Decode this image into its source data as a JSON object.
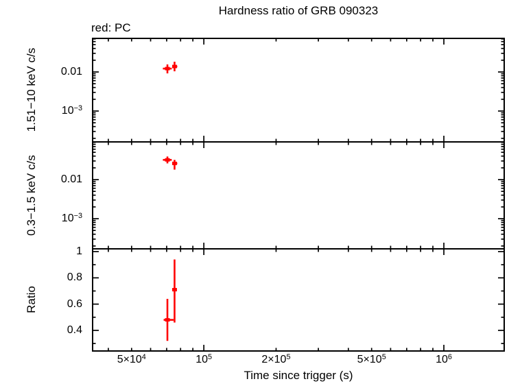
{
  "chart_data": {
    "type": "scatter",
    "title": "Hardness ratio of GRB 090323",
    "legend_note": "red: PC",
    "xlabel": "Time since trigger (s)",
    "x_scale": "log",
    "xlim": [
      34400,
      1784000
    ],
    "grid": false,
    "series_color": "#ff0000",
    "axis_color": "#000000",
    "x_ticks": [
      {
        "value": 50000,
        "base": "5×10",
        "exp": "4"
      },
      {
        "value": 100000,
        "base": "10",
        "exp": "5"
      },
      {
        "value": 200000,
        "base": "2×10",
        "exp": "5"
      },
      {
        "value": 500000,
        "base": "5×10",
        "exp": "5"
      },
      {
        "value": 1000000,
        "base": "10",
        "exp": "6"
      }
    ],
    "panels": [
      {
        "name": "hard-rate",
        "ylabel": "1.51−10 keV c/s",
        "y_scale": "log",
        "ylim": [
          0.000162,
          0.0724
        ],
        "y_ticks": [
          {
            "value": 0.01,
            "base": "0.01",
            "exp": ""
          },
          {
            "value": 0.001,
            "base": "10",
            "exp": "−3"
          }
        ],
        "points": [
          {
            "x": 70500,
            "x_lo": 67500,
            "x_hi": 73500,
            "y": 0.0122,
            "y_lo": 0.0092,
            "y_hi": 0.0156
          },
          {
            "x": 75500,
            "x_lo": 74000,
            "x_hi": 77500,
            "y": 0.0138,
            "y_lo": 0.0104,
            "y_hi": 0.0183
          }
        ]
      },
      {
        "name": "soft-rate",
        "ylabel": "0.3−1.5 keV c/s",
        "y_scale": "log",
        "ylim": [
          0.000169,
          0.0923
        ],
        "y_ticks": [
          {
            "value": 0.01,
            "base": "0.01",
            "exp": ""
          },
          {
            "value": 0.001,
            "base": "10",
            "exp": "−3"
          }
        ],
        "points": [
          {
            "x": 70500,
            "x_lo": 67500,
            "x_hi": 73500,
            "y": 0.032,
            "y_lo": 0.026,
            "y_hi": 0.039
          },
          {
            "x": 75500,
            "x_lo": 74000,
            "x_hi": 77500,
            "y": 0.026,
            "y_lo": 0.018,
            "y_hi": 0.032
          }
        ]
      },
      {
        "name": "ratio",
        "ylabel": "Ratio",
        "y_scale": "linear",
        "ylim": [
          0.243,
          1.021
        ],
        "y_major": [
          0.4,
          0.6,
          0.8,
          1.0
        ],
        "y_minor": [
          0.3,
          0.5,
          0.7,
          0.9
        ],
        "y_ticks": [
          {
            "value": 1.0,
            "base": "1",
            "exp": ""
          },
          {
            "value": 0.8,
            "base": "0.8",
            "exp": ""
          },
          {
            "value": 0.6,
            "base": "0.6",
            "exp": ""
          },
          {
            "value": 0.4,
            "base": "0.4",
            "exp": ""
          }
        ],
        "points": [
          {
            "x": 70500,
            "x_lo": 68000,
            "x_hi": 74800,
            "y": 0.48,
            "y_lo": 0.32,
            "y_hi": 0.64
          },
          {
            "x": 75500,
            "x_lo": 74500,
            "x_hi": 76500,
            "y": 0.71,
            "y_lo": 0.46,
            "y_hi": 0.94
          }
        ]
      }
    ]
  }
}
